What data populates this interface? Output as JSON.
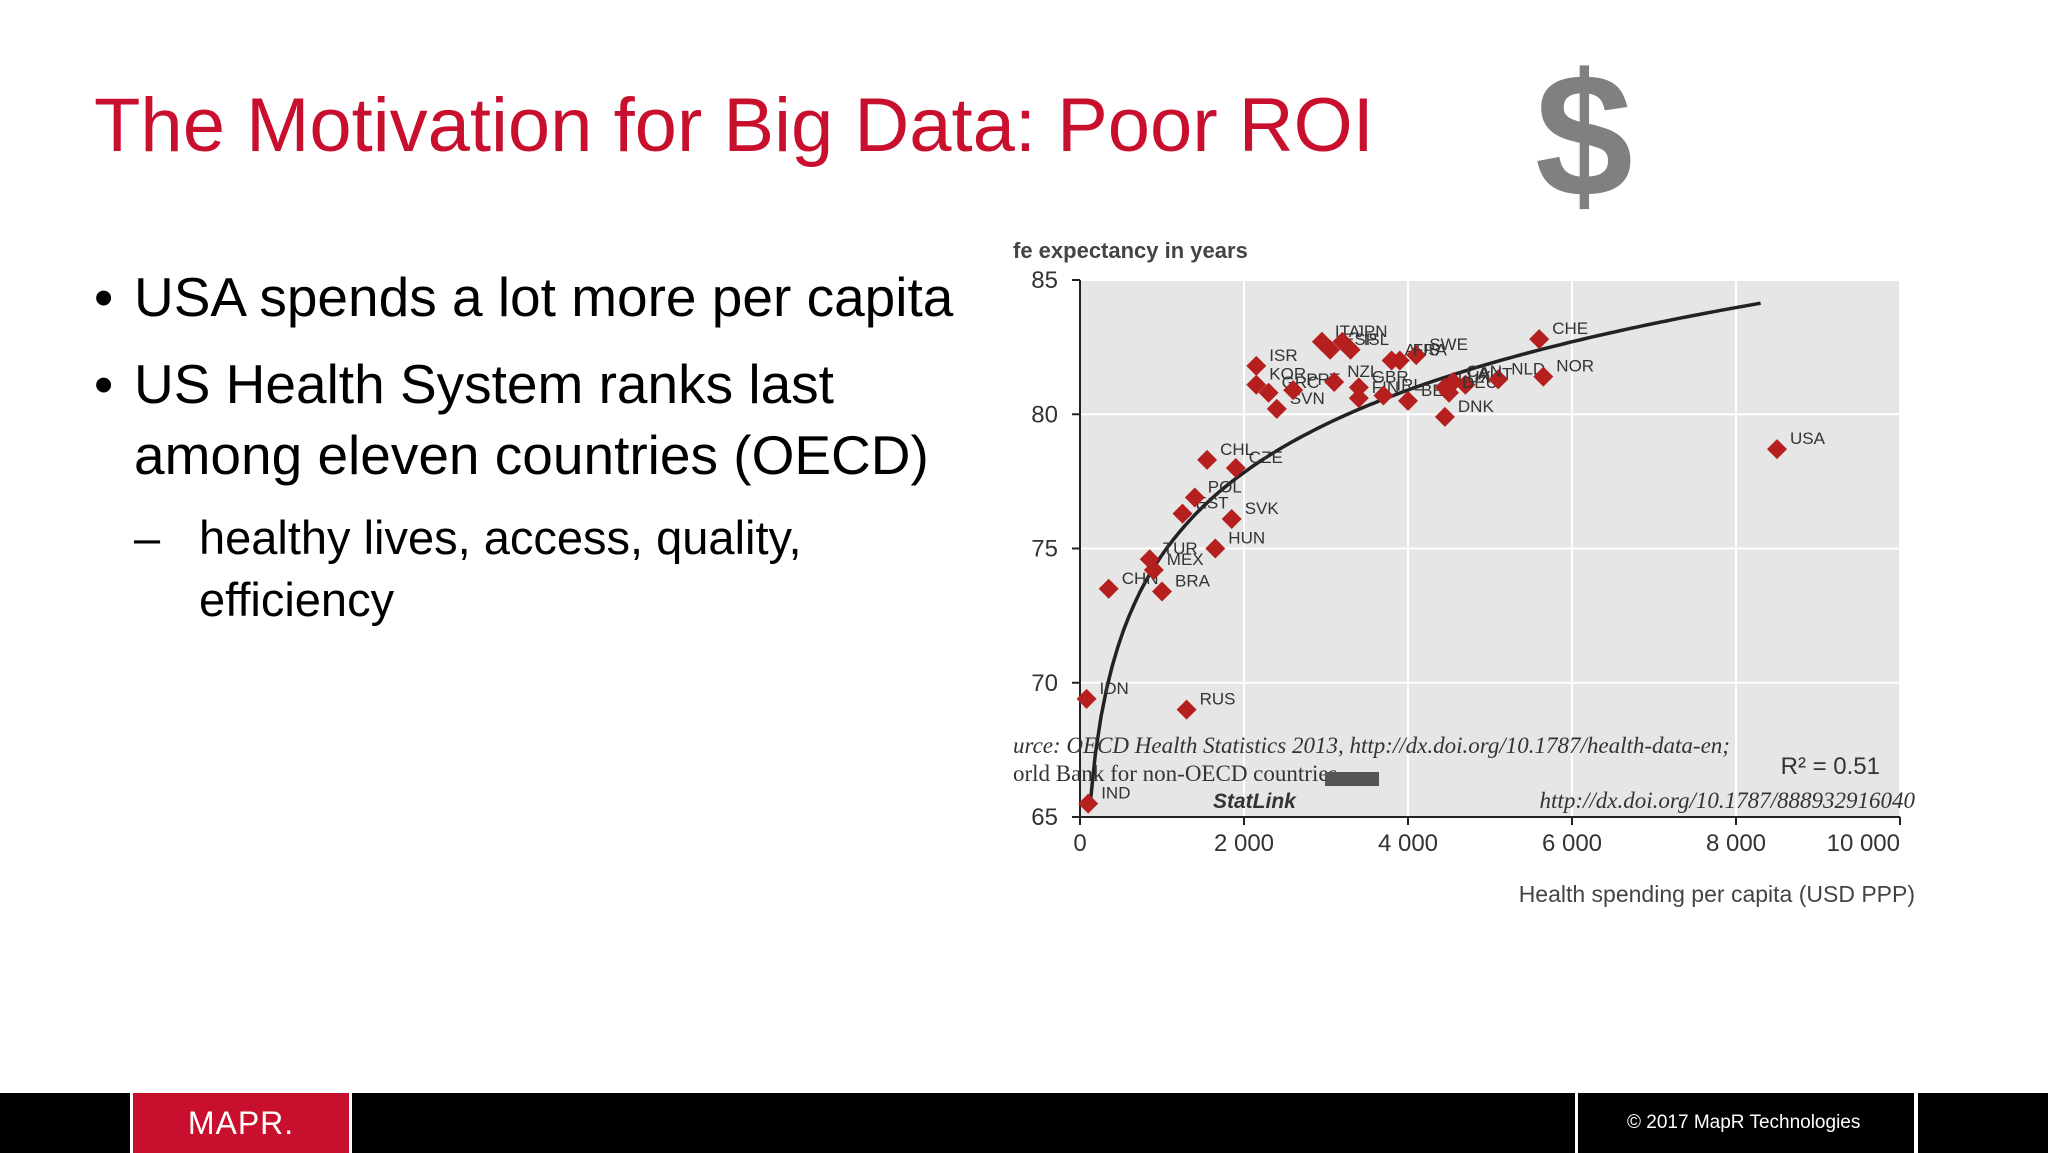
{
  "slide": {
    "title": "The Motivation for Big Data: Poor ROI",
    "dollar_icon": "$",
    "bullets": [
      "USA spends a lot more per capita",
      "US Health System ranks last among eleven countries (OECD)"
    ],
    "sub_bullets": [
      "healthy lives, access, quality, efficiency"
    ],
    "bullet_mark": "•",
    "sub_mark": "–"
  },
  "footer": {
    "logo_text": "MAPR.",
    "copyright": "© 2017 MapR Technologies"
  },
  "colors": {
    "title": "#c8102e",
    "marker": "#b5201e",
    "plot_bg": "#e6e6e6",
    "dollar": "#808080",
    "footer_bg": "#000000"
  },
  "chart_data": {
    "type": "scatter",
    "ylabel": "fe expectancy in years",
    "xlabel": "Health spending per capita (USD PPP)",
    "xlim": [
      0,
      10000
    ],
    "ylim": [
      65,
      85
    ],
    "xticks": [
      0,
      2000,
      4000,
      6000,
      8000,
      10000
    ],
    "xtick_labels": [
      "0",
      "2 000",
      "4 000",
      "6 000",
      "8 000",
      "10 000"
    ],
    "yticks": [
      65,
      70,
      75,
      80,
      85
    ],
    "annotation": "R² = 0.51",
    "grid": true,
    "fit_curve": {
      "form": "logarithmic",
      "a": 44.16,
      "b": 4.43,
      "x_range": [
        120,
        8300
      ]
    },
    "points": [
      {
        "label": "IND",
        "x": 100,
        "y": 65.5
      },
      {
        "label": "IDN",
        "x": 80,
        "y": 69.4
      },
      {
        "label": "RUS",
        "x": 1300,
        "y": 69.0
      },
      {
        "label": "CHN",
        "x": 350,
        "y": 73.5
      },
      {
        "label": "BRA",
        "x": 1000,
        "y": 73.4
      },
      {
        "label": "MEX",
        "x": 900,
        "y": 74.2
      },
      {
        "label": "TUR",
        "x": 850,
        "y": 74.6
      },
      {
        "label": "HUN",
        "x": 1650,
        "y": 75.0
      },
      {
        "label": "EST",
        "x": 1250,
        "y": 76.3
      },
      {
        "label": "POL",
        "x": 1400,
        "y": 76.9
      },
      {
        "label": "SVK",
        "x": 1850,
        "y": 76.1
      },
      {
        "label": "CZE",
        "x": 1900,
        "y": 78.0
      },
      {
        "label": "CHL",
        "x": 1550,
        "y": 78.3
      },
      {
        "label": "SVN",
        "x": 2400,
        "y": 80.2
      },
      {
        "label": "GRC",
        "x": 2300,
        "y": 80.8
      },
      {
        "label": "KOR",
        "x": 2150,
        "y": 81.1
      },
      {
        "label": "ISR",
        "x": 2150,
        "y": 81.8
      },
      {
        "label": "PRT",
        "x": 2600,
        "y": 80.9
      },
      {
        "label": "ESP",
        "x": 3050,
        "y": 82.4
      },
      {
        "label": "ITA",
        "x": 2950,
        "y": 82.7
      },
      {
        "label": "NZL",
        "x": 3100,
        "y": 81.2
      },
      {
        "label": "FIN",
        "x": 3400,
        "y": 80.6
      },
      {
        "label": "JPN",
        "x": 3200,
        "y": 82.7
      },
      {
        "label": "ISL",
        "x": 3300,
        "y": 82.4
      },
      {
        "label": "AUS",
        "x": 3800,
        "y": 82.0
      },
      {
        "label": "GBR",
        "x": 3400,
        "y": 81.0
      },
      {
        "label": "IRL",
        "x": 3700,
        "y": 80.7
      },
      {
        "label": "BEL",
        "x": 4000,
        "y": 80.5
      },
      {
        "label": "SWE",
        "x": 4100,
        "y": 82.2
      },
      {
        "label": "FRA",
        "x": 3900,
        "y": 82.0
      },
      {
        "label": "AUT",
        "x": 4700,
        "y": 81.1
      },
      {
        "label": "LUX",
        "x": 4450,
        "y": 81.0
      },
      {
        "label": "DEU",
        "x": 4500,
        "y": 80.8
      },
      {
        "label": "DNK",
        "x": 4450,
        "y": 79.9
      },
      {
        "label": "NLD",
        "x": 5100,
        "y": 81.3
      },
      {
        "label": "CAN",
        "x": 4550,
        "y": 81.2
      },
      {
        "label": "CHE",
        "x": 5600,
        "y": 82.8
      },
      {
        "label": "NOR",
        "x": 5650,
        "y": 81.4
      },
      {
        "label": "USA",
        "x": 8500,
        "y": 78.7
      }
    ],
    "source_lines": [
      "urce: OECD Health Statistics 2013, http://dx.doi.org/10.1787/health-data-en;",
      "orld Bank for non-OECD countries."
    ],
    "statlink_label": "StatLink",
    "statlink_url": "http://dx.doi.org/10.1787/888932916040"
  }
}
